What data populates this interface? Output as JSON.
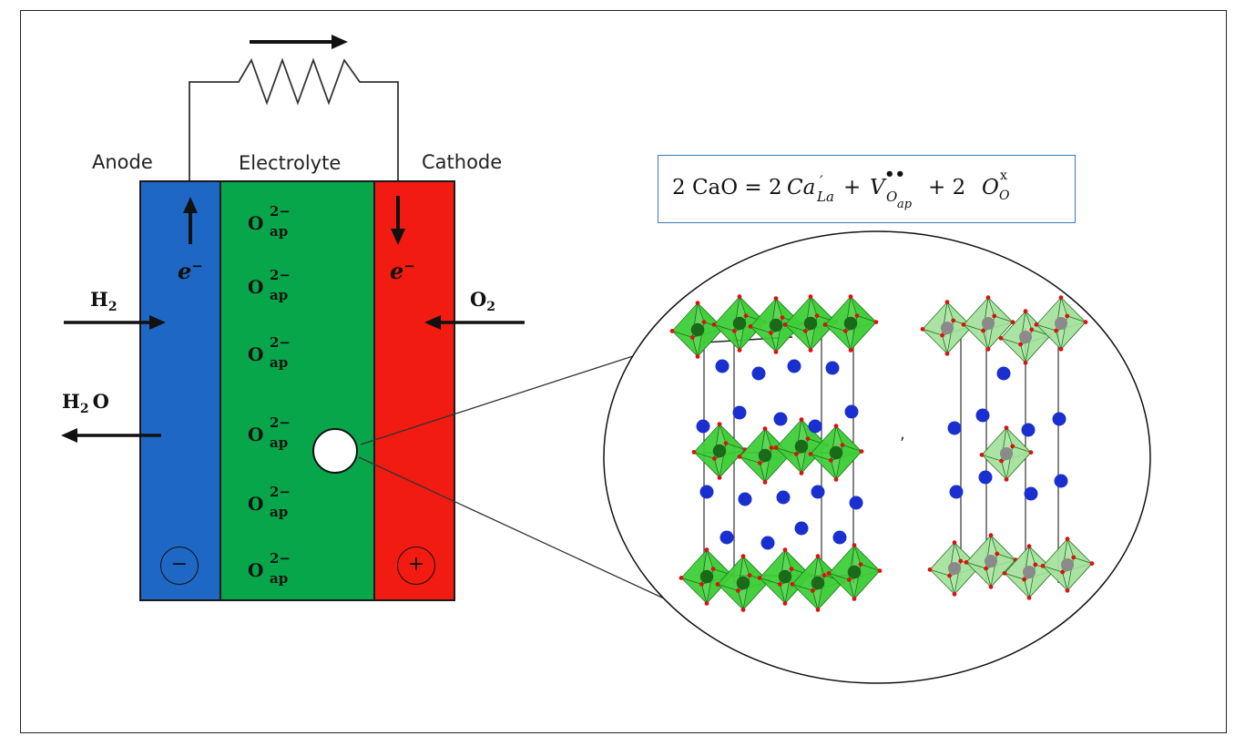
{
  "labels": {
    "anode": "Anode",
    "electrolyte": "Electrolyte",
    "cathode": "Cathode"
  },
  "ion": {
    "base": "O",
    "charge": "2−",
    "site": "ap"
  },
  "gases": {
    "h2": "H",
    "h2_sub": "2",
    "o2": "O",
    "o2_sub": "2",
    "h2o_h": "H",
    "h2o_sub": "2",
    "h2o_o": "O"
  },
  "electron": {
    "symbol": "e",
    "charge": "−"
  },
  "signs": {
    "negative": "−",
    "positive": "+"
  },
  "equation": {
    "lhs": "2 CaO = 2",
    "ca": "Ca",
    "ca_sup": "′",
    "ca_sub": "La",
    "plus1": "+",
    "v": "V",
    "v_sup": "••",
    "v_sub": "O",
    "v_subsub": "ap",
    "plus2": "+ 2",
    "o": "O",
    "o_sup": "x",
    "o_sub": "O"
  },
  "colors": {
    "anode": "#1f67c4",
    "electrolyte": "#07a64b",
    "cathode": "#f21b12",
    "octahedra": "#3fcf3a",
    "octahedra_light": "#a6e2a0",
    "cation": "#1a2fcf",
    "equation_border": "#3a79b8"
  }
}
